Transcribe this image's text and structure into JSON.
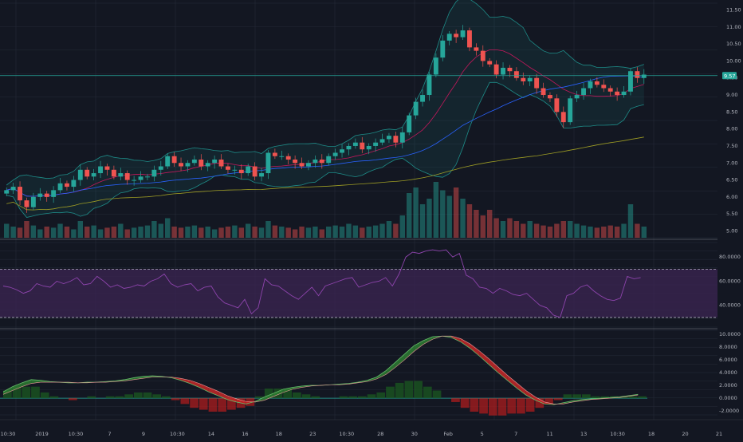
{
  "colors": {
    "background": "#131722",
    "grid": "#252a38",
    "up": "#26a69a",
    "down": "#ef5350",
    "bollinger": "#1e8c88",
    "ma_red": "#c2185b",
    "ma_blue": "#2962ff",
    "ma_yellow": "#9e9d24",
    "rsi_line": "#8e44ad",
    "rsi_fill": "#3a2450",
    "macd_green": "#1b5e20",
    "macd_red": "#b71c1c"
  },
  "price_badge": "9.57",
  "chart_data": [
    {
      "type": "candlestick",
      "panel": "price",
      "ylim": [
        4.8,
        11.7
      ],
      "yticks": [
        "11.50",
        "11.00",
        "10.50",
        "10.00",
        "9.50",
        "9.00",
        "8.50",
        "8.00",
        "7.50",
        "7.00",
        "6.50",
        "6.00",
        "5.50",
        "5.00"
      ],
      "last_price": 9.57,
      "x_labels": [
        "10:30",
        "2019",
        "10:30",
        "7",
        "9",
        "10:30",
        "14",
        "16",
        "18",
        "23",
        "10:30",
        "28",
        "30",
        "Feb",
        "5",
        "7",
        "11",
        "13",
        "10:30",
        "18",
        "20",
        "21"
      ],
      "close_series": [
        6.2,
        6.3,
        5.9,
        5.7,
        6.0,
        6.1,
        6.0,
        6.2,
        6.4,
        6.3,
        6.5,
        6.8,
        6.6,
        6.7,
        6.9,
        6.8,
        6.6,
        6.7,
        6.5,
        6.5,
        6.6,
        6.6,
        6.8,
        6.9,
        7.2,
        7.0,
        6.9,
        7.0,
        7.1,
        6.9,
        7.0,
        7.1,
        6.9,
        6.8,
        6.8,
        6.7,
        6.9,
        6.6,
        6.7,
        7.3,
        7.2,
        7.2,
        7.1,
        7.0,
        6.9,
        7.0,
        7.1,
        7.0,
        7.2,
        7.3,
        7.4,
        7.5,
        7.6,
        7.4,
        7.5,
        7.6,
        7.7,
        7.8,
        7.6,
        7.9,
        8.4,
        8.8,
        9.0,
        9.6,
        10.1,
        10.6,
        10.8,
        10.7,
        10.9,
        10.4,
        10.3,
        10.0,
        9.9,
        9.6,
        9.8,
        9.7,
        9.5,
        9.4,
        9.5,
        9.2,
        9.0,
        8.9,
        8.5,
        8.2,
        8.9,
        9.0,
        9.2,
        9.4,
        9.3,
        9.2,
        9.1,
        9.0,
        9.1,
        9.7,
        9.5,
        9.6
      ],
      "volume": [
        0.25,
        0.2,
        0.18,
        0.3,
        0.22,
        0.15,
        0.2,
        0.18,
        0.25,
        0.2,
        0.15,
        0.3,
        0.2,
        0.22,
        0.15,
        0.18,
        0.2,
        0.25,
        0.15,
        0.18,
        0.2,
        0.22,
        0.3,
        0.25,
        0.35,
        0.2,
        0.18,
        0.2,
        0.22,
        0.18,
        0.2,
        0.15,
        0.18,
        0.2,
        0.22,
        0.18,
        0.25,
        0.2,
        0.18,
        0.3,
        0.22,
        0.2,
        0.18,
        0.15,
        0.2,
        0.18,
        0.2,
        0.15,
        0.2,
        0.22,
        0.2,
        0.25,
        0.22,
        0.18,
        0.2,
        0.22,
        0.25,
        0.3,
        0.25,
        0.4,
        0.8,
        0.9,
        0.6,
        0.7,
        1.0,
        0.85,
        0.75,
        0.9,
        0.7,
        0.6,
        0.5,
        0.4,
        0.5,
        0.35,
        0.3,
        0.35,
        0.3,
        0.25,
        0.3,
        0.25,
        0.22,
        0.2,
        0.25,
        0.3,
        0.3,
        0.25,
        0.22,
        0.2,
        0.18,
        0.2,
        0.22,
        0.2,
        0.25,
        0.6,
        0.25,
        0.2
      ]
    },
    {
      "type": "line",
      "panel": "rsi",
      "ylim": [
        22,
        92
      ],
      "yticks": [
        "80.0000",
        "60.0000",
        "40.0000"
      ],
      "bands": [
        70,
        30
      ],
      "values": [
        56,
        55,
        53,
        50,
        52,
        58,
        56,
        55,
        60,
        58,
        60,
        63,
        57,
        58,
        64,
        60,
        55,
        57,
        54,
        55,
        57,
        56,
        60,
        62,
        66,
        58,
        55,
        57,
        58,
        52,
        55,
        56,
        47,
        42,
        40,
        38,
        45,
        33,
        38,
        62,
        57,
        56,
        52,
        48,
        45,
        50,
        55,
        48,
        56,
        58,
        60,
        62,
        63,
        55,
        57,
        59,
        60,
        63,
        56,
        66,
        80,
        84,
        83,
        85,
        86,
        85,
        86,
        80,
        83,
        65,
        62,
        55,
        54,
        50,
        54,
        52,
        49,
        48,
        50,
        45,
        40,
        38,
        32,
        30,
        48,
        50,
        55,
        57,
        52,
        48,
        45,
        44,
        46,
        64,
        62,
        63
      ]
    },
    {
      "type": "area",
      "panel": "macd",
      "ylim": [
        -2.6,
        10.6
      ],
      "yticks": [
        "10.0000",
        "8.0000",
        "6.0000",
        "4.0000",
        "2.0000",
        "0.0000",
        "-2.0000"
      ],
      "macd": [
        1.0,
        1.8,
        2.4,
        2.9,
        2.8,
        2.6,
        2.5,
        2.4,
        2.4,
        2.5,
        2.5,
        2.6,
        2.7,
        2.9,
        3.2,
        3.4,
        3.5,
        3.4,
        3.2,
        2.8,
        2.3,
        1.7,
        1.0,
        0.4,
        -0.2,
        -0.6,
        -0.9,
        -0.5,
        0.2,
        0.8,
        1.4,
        1.7,
        1.9,
        2.0,
        2.0,
        2.1,
        2.2,
        2.3,
        2.5,
        2.8,
        3.3,
        4.3,
        5.6,
        6.9,
        8.2,
        9.0,
        9.6,
        9.7,
        9.5,
        8.8,
        7.8,
        6.6,
        5.3,
        4.0,
        2.8,
        1.6,
        0.5,
        -0.3,
        -0.9,
        -1.0,
        -0.7,
        -0.4,
        -0.2,
        -0.1,
        0.0,
        0.1,
        0.2,
        0.4,
        0.6
      ],
      "signal": [
        0.6,
        1.2,
        1.8,
        2.3,
        2.5,
        2.5,
        2.5,
        2.5,
        2.4,
        2.4,
        2.5,
        2.5,
        2.6,
        2.7,
        2.9,
        3.1,
        3.3,
        3.3,
        3.3,
        3.1,
        2.8,
        2.3,
        1.7,
        1.1,
        0.4,
        -0.1,
        -0.5,
        -0.6,
        -0.3,
        0.3,
        0.9,
        1.4,
        1.7,
        1.9,
        2.0,
        2.1,
        2.1,
        2.2,
        2.4,
        2.6,
        3.0,
        3.7,
        4.8,
        6.0,
        7.3,
        8.4,
        9.2,
        9.7,
        9.7,
        9.3,
        8.5,
        7.4,
        6.2,
        4.9,
        3.6,
        2.4,
        1.2,
        0.2,
        -0.6,
        -0.9,
        -0.9,
        -0.6,
        -0.4,
        -0.2,
        -0.1,
        0.0,
        0.1,
        0.3,
        0.5
      ]
    }
  ]
}
